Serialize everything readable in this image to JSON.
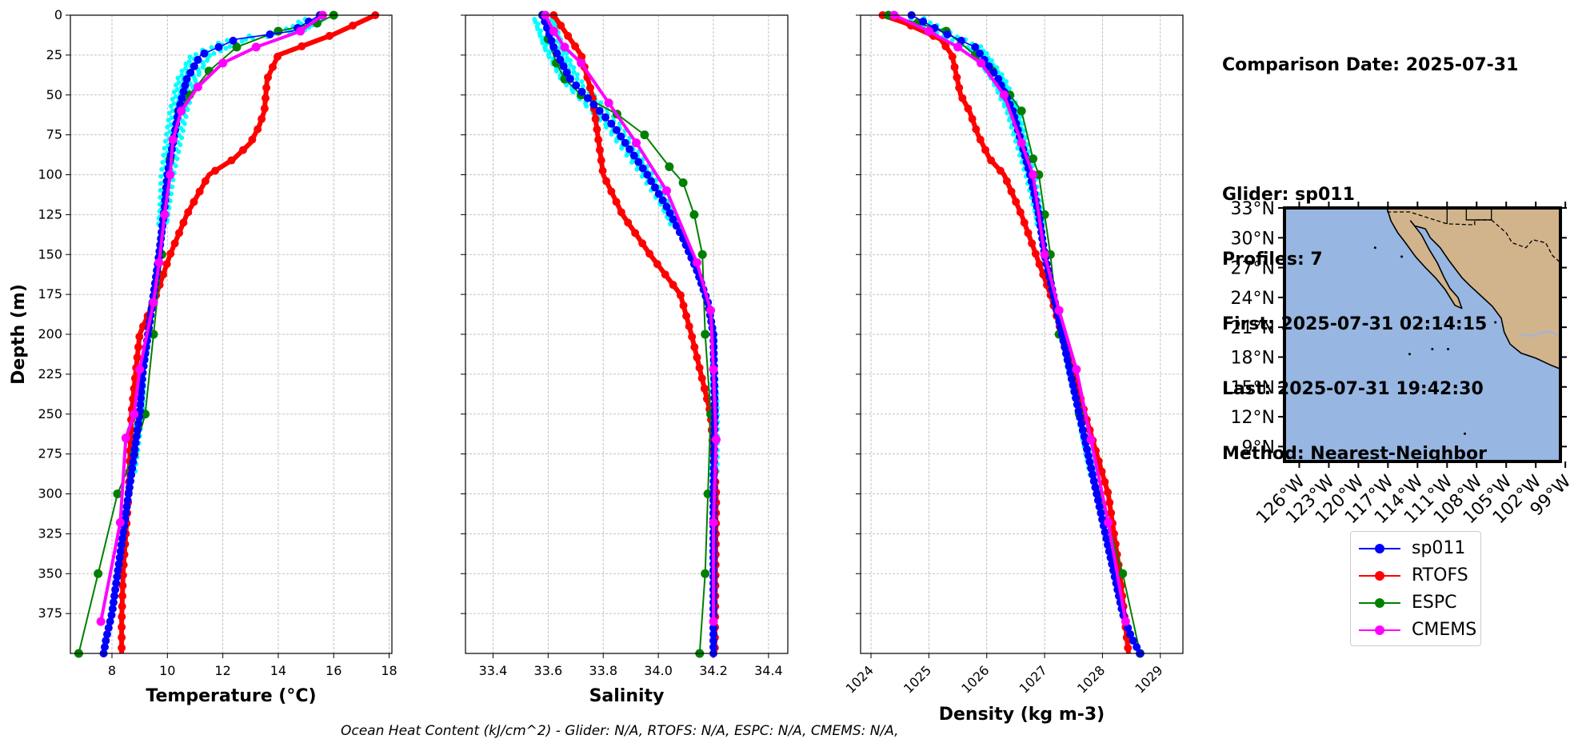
{
  "header": {
    "comparison": "Comparison Date: 2025-07-31",
    "glider": "Glider: sp011",
    "profiles": "Profiles: 7",
    "first": "First: 2025-07-31 02:14:15",
    "last": "Last: 2025-07-31 19:42:30",
    "method": "Method: Nearest-Neighbor"
  },
  "footer": {
    "ohc": "Ocean Heat Content (kJ/cm^2) - Glider: N/A,  RTOFS: N/A,  ESPC: N/A,  CMEMS: N/A,"
  },
  "colors": {
    "sp011": "#0000ff",
    "rtofs": "#ff0000",
    "espc": "#008000",
    "cmems": "#ff00ff",
    "glider_raw": "#00ffff",
    "ocean": "#97b6e1",
    "land": "#d2b48c"
  },
  "legend": [
    {
      "name": "sp011",
      "color": "#0000ff"
    },
    {
      "name": "RTOFS",
      "color": "#ff0000"
    },
    {
      "name": "ESPC",
      "color": "#008000"
    },
    {
      "name": "CMEMS",
      "color": "#ff00ff"
    }
  ],
  "chart_data": [
    {
      "type": "line",
      "title": "",
      "xlabel": "Temperature (°C)",
      "ylabel": "Depth (m)",
      "xlim": [
        6.5,
        18.1
      ],
      "ylim": [
        400,
        0
      ],
      "xticks": [
        "8",
        "10",
        "12",
        "14",
        "16",
        "18"
      ],
      "yticks": [
        "0",
        "25",
        "50",
        "75",
        "100",
        "125",
        "150",
        "175",
        "200",
        "225",
        "250",
        "275",
        "300",
        "325",
        "350",
        "375"
      ],
      "grid": true,
      "series": [
        {
          "name": "sp011",
          "x": [
            15.5,
            14.5,
            12.5,
            11.2,
            10.7,
            10.4,
            10.2,
            10.0,
            9.9,
            9.7,
            9.5,
            9.3,
            9.1,
            9.0,
            8.8,
            8.6,
            8.4,
            8.2,
            8.0,
            7.8,
            7.7
          ],
          "y": [
            0,
            10,
            15,
            25,
            40,
            60,
            80,
            100,
            120,
            150,
            175,
            200,
            225,
            250,
            275,
            300,
            325,
            350,
            375,
            390,
            400
          ]
        },
        {
          "name": "RTOFS",
          "x": [
            17.5,
            16.0,
            14.0,
            13.6,
            13.5,
            13.3,
            13.0,
            12.4,
            11.5,
            10.7,
            10.1,
            9.5,
            9.0,
            8.7,
            8.6,
            8.4,
            8.35,
            8.35
          ],
          "y": [
            0,
            12,
            25,
            40,
            60,
            70,
            80,
            90,
            100,
            125,
            150,
            180,
            200,
            250,
            300,
            350,
            380,
            400
          ]
        },
        {
          "name": "ESPC",
          "x": [
            16.0,
            15.4,
            14.0,
            12.5,
            11.5,
            10.8,
            10.4,
            10.1,
            9.9,
            9.8,
            9.5,
            9.2,
            8.8,
            8.2,
            7.5,
            6.8
          ],
          "y": [
            0,
            5,
            10,
            20,
            35,
            50,
            60,
            90,
            125,
            150,
            200,
            250,
            275,
            300,
            350,
            400
          ]
        },
        {
          "name": "CMEMS",
          "x": [
            15.6,
            14.8,
            13.2,
            12.0,
            11.1,
            10.5,
            10.2,
            10.1,
            9.9,
            9.7,
            9.5,
            9.0,
            8.8,
            8.5,
            8.3,
            7.6
          ],
          "y": [
            0,
            10,
            20,
            30,
            45,
            60,
            78,
            100,
            125,
            155,
            180,
            222,
            250,
            265,
            318,
            380
          ]
        }
      ]
    },
    {
      "type": "line",
      "title": "",
      "xlabel": "Salinity",
      "ylabel": "",
      "xlim": [
        33.3,
        34.47
      ],
      "ylim": [
        400,
        0
      ],
      "xticks": [
        "33.4",
        "33.6",
        "33.8",
        "34.0",
        "34.2",
        "34.4"
      ],
      "grid": true,
      "series": [
        {
          "name": "sp011",
          "x": [
            33.58,
            33.62,
            33.68,
            33.76,
            33.84,
            33.9,
            33.96,
            34.03,
            34.09,
            34.14,
            34.18,
            34.2,
            34.205,
            34.2,
            34.2
          ],
          "y": [
            0,
            20,
            40,
            55,
            70,
            85,
            100,
            120,
            140,
            160,
            180,
            200,
            250,
            300,
            400
          ]
        },
        {
          "name": "RTOFS",
          "x": [
            33.62,
            33.66,
            33.72,
            33.76,
            33.78,
            33.8,
            33.87,
            33.97,
            34.08,
            34.12,
            34.19,
            34.21,
            34.205
          ],
          "y": [
            0,
            10,
            25,
            50,
            75,
            100,
            125,
            150,
            175,
            200,
            250,
            300,
            400
          ]
        },
        {
          "name": "ESPC",
          "x": [
            33.58,
            33.6,
            33.63,
            33.66,
            33.72,
            33.85,
            33.95,
            34.04,
            34.09,
            34.13,
            34.16,
            34.17,
            34.19,
            34.18,
            34.17,
            34.15
          ],
          "y": [
            0,
            15,
            30,
            40,
            50,
            62,
            75,
            95,
            105,
            125,
            150,
            200,
            250,
            300,
            350,
            400
          ]
        },
        {
          "name": "CMEMS",
          "x": [
            33.59,
            33.62,
            33.66,
            33.72,
            33.82,
            33.92,
            34.03,
            34.14,
            34.19,
            34.2,
            34.21,
            34.2,
            34.2
          ],
          "y": [
            0,
            10,
            20,
            30,
            55,
            80,
            110,
            155,
            185,
            222,
            266,
            318,
            380
          ]
        }
      ]
    },
    {
      "type": "line",
      "title": "",
      "xlabel": "Density (kg m-3)",
      "ylabel": "",
      "xlim": [
        1023.82,
        1029.39
      ],
      "ylim": [
        400,
        0
      ],
      "xticks": [
        "1024",
        "1025",
        "1026",
        "1027",
        "1028",
        "1029"
      ],
      "grid": true,
      "series": [
        {
          "name": "sp011",
          "x": [
            1024.7,
            1025.2,
            1025.8,
            1026.2,
            1026.45,
            1026.6,
            1026.75,
            1026.9,
            1027.0,
            1027.15,
            1027.3,
            1027.45,
            1027.6,
            1027.75,
            1027.9,
            1028.05,
            1028.2,
            1028.35,
            1028.5,
            1028.65
          ],
          "y": [
            0,
            10,
            20,
            40,
            60,
            80,
            100,
            125,
            150,
            175,
            200,
            225,
            250,
            275,
            300,
            325,
            350,
            375,
            390,
            400
          ]
        },
        {
          "name": "RTOFS",
          "x": [
            1024.2,
            1024.6,
            1025.2,
            1025.4,
            1025.55,
            1025.7,
            1025.85,
            1026.05,
            1026.3,
            1026.6,
            1026.85,
            1027.1,
            1027.3,
            1027.5,
            1027.7,
            1027.9,
            1028.1,
            1028.3,
            1028.45
          ],
          "y": [
            0,
            5,
            15,
            25,
            50,
            60,
            75,
            90,
            100,
            125,
            150,
            175,
            200,
            225,
            250,
            275,
            300,
            350,
            400
          ]
        },
        {
          "name": "ESPC",
          "x": [
            1024.3,
            1024.8,
            1025.3,
            1025.8,
            1026.1,
            1026.4,
            1026.6,
            1026.8,
            1026.9,
            1027.0,
            1027.1,
            1027.25,
            1027.6,
            1027.95,
            1028.35,
            1028.65
          ],
          "y": [
            0,
            5,
            10,
            25,
            35,
            50,
            60,
            90,
            100,
            125,
            150,
            200,
            250,
            300,
            350,
            400
          ]
        },
        {
          "name": "CMEMS",
          "x": [
            1024.4,
            1025.0,
            1025.5,
            1025.9,
            1026.3,
            1026.6,
            1026.8,
            1027.0,
            1027.25,
            1027.55,
            1027.8,
            1028.1,
            1028.4
          ],
          "y": [
            0,
            10,
            20,
            30,
            50,
            80,
            100,
            150,
            185,
            222,
            266,
            318,
            380
          ]
        }
      ]
    },
    {
      "type": "map",
      "title": "",
      "lat_ticks": [
        "33°N",
        "30°N",
        "27°N",
        "24°N",
        "21°N",
        "18°N",
        "15°N",
        "12°N",
        "9°N"
      ],
      "lon_ticks": [
        "126°W",
        "123°W",
        "120°W",
        "117°W",
        "114°W",
        "111°W",
        "108°W",
        "105°W",
        "102°W",
        "99°W"
      ],
      "lat_range": [
        7.5,
        33
      ],
      "lon_range": [
        -127.5,
        -99.5
      ]
    }
  ]
}
